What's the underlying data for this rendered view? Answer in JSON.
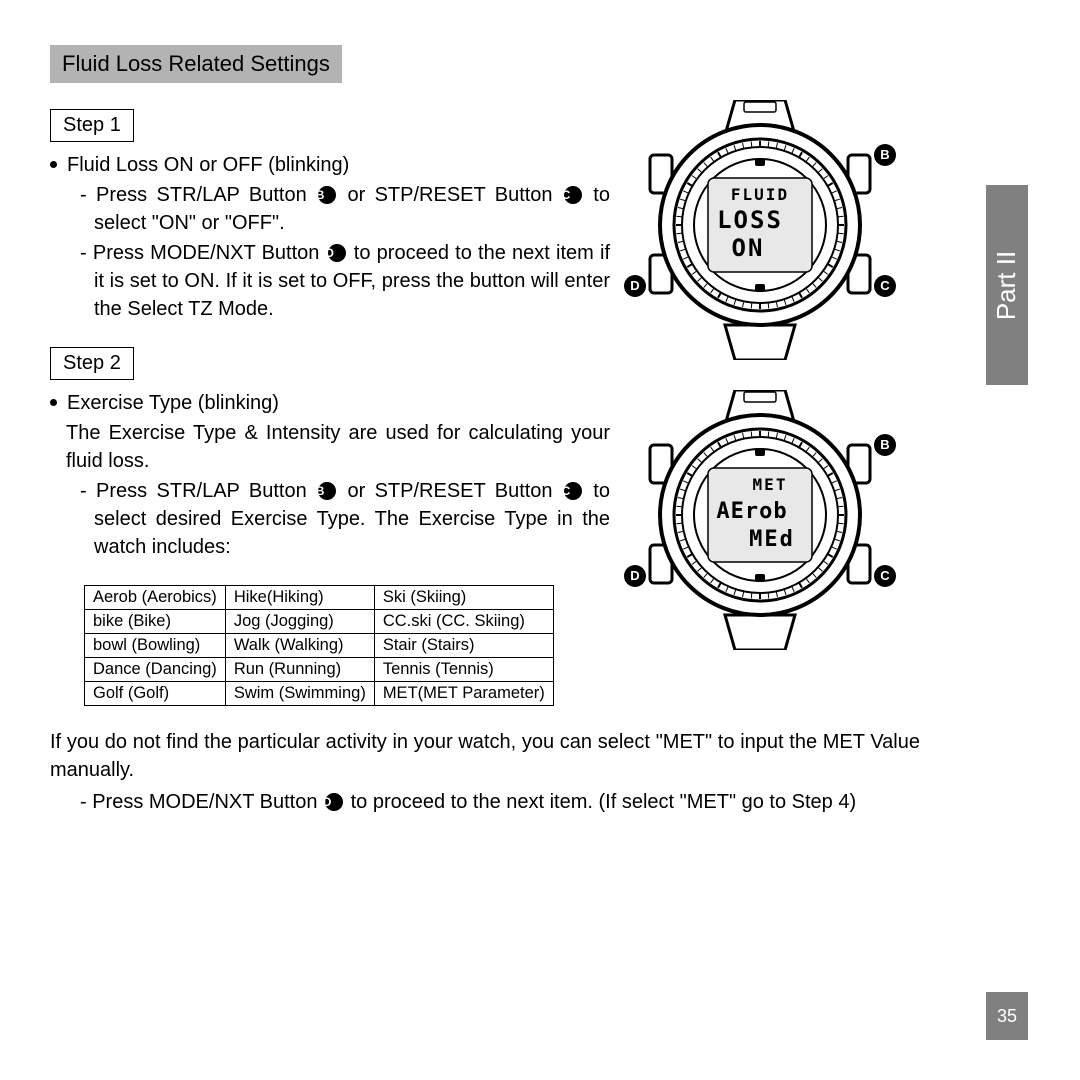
{
  "section_title": "Fluid Loss Related Settings",
  "side_tab": "Part II",
  "page_number": "35",
  "step1": {
    "label": "Step 1",
    "heading": "Fluid Loss ON or OFF (blinking)",
    "line1_a": "- Press STR/LAP Button ",
    "line1_b": " or STP/RESET Button ",
    "line1_c": " to select \"ON\" or  \"OFF\".",
    "line2_a": "- Press MODE/NXT Button ",
    "line2_b": " to proceed to the next item if it is set to ON. If it is set to OFF, press the button will enter the Select TZ Mode."
  },
  "step2": {
    "label": "Step 2",
    "heading": "Exercise Type (blinking)",
    "intro": "The Exercise Type & Intensity are used for calculating your fluid loss.",
    "line1_a": "- Press STR/LAP Button ",
    "line1_b": " or STP/RESET Button ",
    "line1_c": " to select desired Exercise Type. The Exercise Type in the watch includes:"
  },
  "labels": {
    "B": "B",
    "C": "C",
    "D": "D"
  },
  "watch1": {
    "l1": "FLUID",
    "l2": "LOSS",
    "l3": "ON"
  },
  "watch2": {
    "l1": "MET",
    "l2": "AErob",
    "l3": "MEd"
  },
  "table": {
    "rows": [
      [
        "Aerob (Aerobics)",
        "Hike(Hiking)",
        "Ski (Skiing)"
      ],
      [
        "bike (Bike)",
        "Jog (Jogging)",
        "CC.ski (CC. Skiing)"
      ],
      [
        "bowl (Bowling)",
        "Walk (Walking)",
        "Stair (Stairs)"
      ],
      [
        "Dance (Dancing)",
        "Run (Running)",
        "Tennis (Tennis)"
      ],
      [
        "Golf (Golf)",
        "Swim (Swimming)",
        "MET(MET Parameter)"
      ]
    ]
  },
  "footer": {
    "para": "If you do not find the particular activity in your watch, you can select \"MET\" to input the MET Value manually.",
    "sub_a": "- Press MODE/NXT Button ",
    "sub_b": " to proceed to the next item. (If select \"MET\" go to Step 4)"
  }
}
